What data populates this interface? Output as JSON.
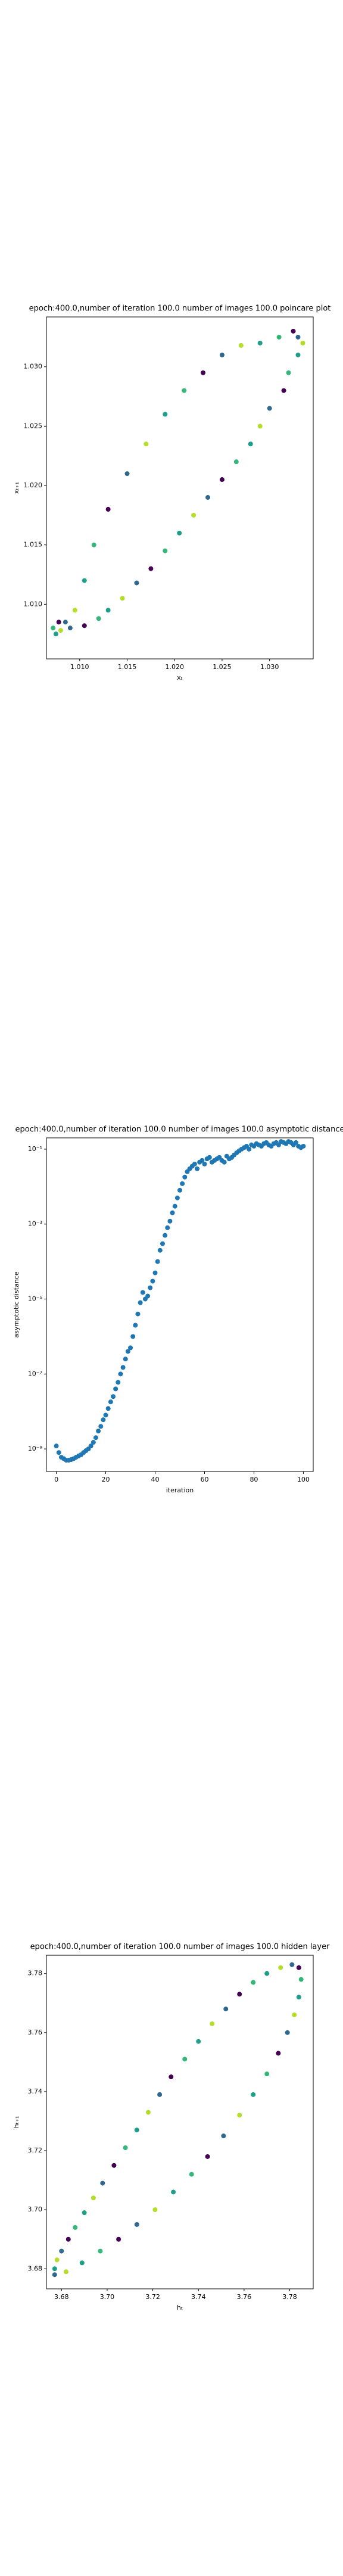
{
  "chart_data": [
    {
      "type": "scatter",
      "title": "epoch:400.0,number of iteration 100.0 number of images 100.0 poincare plot",
      "x_label": "xₜ",
      "y_label": "xₜ₊₁",
      "xlim": [
        1.0065,
        1.0346
      ],
      "ylim": [
        1.0054,
        1.0342
      ],
      "xticks": [
        {
          "value": 1.01,
          "label": "1.010"
        },
        {
          "value": 1.015,
          "label": "1.015"
        },
        {
          "value": 1.02,
          "label": "1.020"
        },
        {
          "value": 1.025,
          "label": "1.025"
        },
        {
          "value": 1.03,
          "label": "1.030"
        }
      ],
      "yticks": [
        {
          "value": 1.01,
          "label": "1.010"
        },
        {
          "value": 1.015,
          "label": "1.015"
        },
        {
          "value": 1.02,
          "label": "1.020"
        },
        {
          "value": 1.025,
          "label": "1.025"
        },
        {
          "value": 1.03,
          "label": "1.030"
        }
      ],
      "colors": [
        "#1f9e89",
        "#b5de2b",
        "#31688e",
        "#440154",
        "#35b779"
      ],
      "x": [
        1.0075,
        1.008,
        1.009,
        1.0105,
        1.012,
        1.013,
        1.0145,
        1.016,
        1.0175,
        1.019,
        1.0205,
        1.022,
        1.0235,
        1.025,
        1.0265,
        1.028,
        1.029,
        1.03,
        1.0315,
        1.032,
        1.033,
        1.0335,
        1.033,
        1.0325,
        1.031,
        1.029,
        1.027,
        1.025,
        1.023,
        1.021,
        1.019,
        1.017,
        1.015,
        1.013,
        1.0115,
        1.0105,
        1.0095,
        1.0085,
        1.0078,
        1.0072
      ],
      "y": [
        1.0075,
        1.0078,
        1.008,
        1.0082,
        1.0088,
        1.0095,
        1.0105,
        1.0118,
        1.013,
        1.0145,
        1.016,
        1.0175,
        1.019,
        1.0205,
        1.022,
        1.0235,
        1.025,
        1.0265,
        1.028,
        1.0295,
        1.031,
        1.032,
        1.0325,
        1.033,
        1.0325,
        1.032,
        1.0318,
        1.031,
        1.0295,
        1.028,
        1.026,
        1.0235,
        1.021,
        1.018,
        1.015,
        1.012,
        1.0095,
        1.0085,
        1.0085,
        1.008
      ]
    },
    {
      "type": "scatter",
      "title": "epoch:400.0,number of iteration 100.0  number of images 100.0 asymptotic distance",
      "x_label": "iteration",
      "y_label": "asymptotic distance",
      "log_y": true,
      "xlim": [
        -4,
        104
      ],
      "ylim": [
        2.5e-10,
        0.2
      ],
      "xticks": [
        0,
        20,
        40,
        60,
        80,
        100
      ],
      "yticks": [
        {
          "value": 1e-09,
          "label": "10⁻⁹"
        },
        {
          "value": 1e-07,
          "label": "10⁻⁷"
        },
        {
          "value": 1e-05,
          "label": "10⁻⁵"
        },
        {
          "value": 0.001,
          "label": "10⁻³"
        },
        {
          "value": 0.1,
          "label": "10⁻¹"
        }
      ],
      "color": "#1f77b4",
      "x": [
        0,
        1,
        2,
        3,
        4,
        5,
        6,
        7,
        8,
        9,
        10,
        11,
        12,
        13,
        14,
        15,
        16,
        17,
        18,
        19,
        20,
        21,
        22,
        23,
        24,
        25,
        26,
        27,
        28,
        29,
        30,
        31,
        32,
        33,
        34,
        35,
        36,
        37,
        38,
        39,
        40,
        41,
        42,
        43,
        44,
        45,
        46,
        47,
        48,
        49,
        50,
        51,
        52,
        53,
        54,
        55,
        56,
        57,
        58,
        59,
        60,
        61,
        62,
        63,
        64,
        65,
        66,
        67,
        68,
        69,
        70,
        71,
        72,
        73,
        74,
        75,
        76,
        77,
        78,
        79,
        80,
        81,
        82,
        83,
        84,
        85,
        86,
        87,
        88,
        89,
        90,
        91,
        92,
        93,
        94,
        95,
        96,
        97,
        98,
        99,
        100
      ],
      "y": [
        1.2e-09,
        8e-10,
        6e-10,
        5.5e-10,
        5e-10,
        5e-10,
        5.2e-10,
        5.5e-10,
        6e-10,
        6.5e-10,
        7e-10,
        8e-10,
        9e-10,
        1e-09,
        1.2e-09,
        1.5e-09,
        2e-09,
        3e-09,
        4e-09,
        6e-09,
        8e-09,
        1.2e-08,
        1.8e-08,
        2.5e-08,
        4e-08,
        6e-08,
        1e-07,
        1.5e-07,
        2.5e-07,
        4e-07,
        5e-07,
        1e-06,
        2e-06,
        4e-06,
        8e-06,
        1.5e-05,
        1e-05,
        1.2e-05,
        2e-05,
        3e-05,
        5e-05,
        0.0001,
        0.0002,
        0.0003,
        0.0005,
        0.0008,
        0.0012,
        0.002,
        0.003,
        0.005,
        0.008,
        0.012,
        0.018,
        0.025,
        0.03,
        0.035,
        0.04,
        0.03,
        0.045,
        0.05,
        0.04,
        0.055,
        0.06,
        0.045,
        0.05,
        0.055,
        0.06,
        0.05,
        0.045,
        0.065,
        0.055,
        0.06,
        0.07,
        0.08,
        0.09,
        0.1,
        0.11,
        0.12,
        0.1,
        0.13,
        0.12,
        0.14,
        0.13,
        0.12,
        0.14,
        0.15,
        0.13,
        0.12,
        0.14,
        0.15,
        0.13,
        0.16,
        0.15,
        0.14,
        0.16,
        0.15,
        0.13,
        0.15,
        0.12,
        0.11,
        0.12
      ]
    },
    {
      "type": "scatter",
      "title": "epoch:400.0,number of iteration 100.0  number of images 100.0 hidden layer",
      "x_label": "hₜ",
      "y_label": "hₜ₊₁",
      "xlim": [
        3.6734,
        3.7903
      ],
      "ylim": [
        3.6732,
        3.7862
      ],
      "xticks": [
        3.68,
        {
          "value": 3.7,
          "label": "3.70"
        },
        3.72,
        3.74,
        3.76,
        3.78
      ],
      "yticks": [
        3.68,
        {
          "value": 3.7,
          "label": "3.70"
        },
        3.72,
        3.74,
        3.76,
        3.78
      ],
      "colors": [
        "#1f9e89",
        "#b5de2b",
        "#31688e",
        "#440154",
        "#35b779"
      ],
      "x": [
        3.677,
        3.678,
        3.68,
        3.683,
        3.686,
        3.69,
        3.694,
        3.698,
        3.703,
        3.708,
        3.713,
        3.718,
        3.723,
        3.728,
        3.734,
        3.74,
        3.746,
        3.752,
        3.758,
        3.764,
        3.77,
        3.776,
        3.781,
        3.784,
        3.785,
        3.784,
        3.782,
        3.779,
        3.775,
        3.77,
        3.764,
        3.758,
        3.751,
        3.744,
        3.737,
        3.729,
        3.721,
        3.713,
        3.705,
        3.697,
        3.689,
        3.682,
        3.677
      ],
      "y": [
        3.68,
        3.683,
        3.686,
        3.69,
        3.694,
        3.699,
        3.704,
        3.709,
        3.715,
        3.721,
        3.727,
        3.733,
        3.739,
        3.745,
        3.751,
        3.757,
        3.763,
        3.768,
        3.773,
        3.777,
        3.78,
        3.782,
        3.783,
        3.782,
        3.778,
        3.772,
        3.766,
        3.76,
        3.753,
        3.746,
        3.739,
        3.732,
        3.725,
        3.718,
        3.712,
        3.706,
        3.7,
        3.695,
        3.69,
        3.686,
        3.682,
        3.679,
        3.678
      ]
    }
  ]
}
